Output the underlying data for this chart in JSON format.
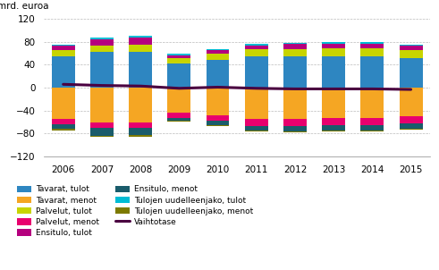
{
  "years": [
    2006,
    2007,
    2008,
    2009,
    2010,
    2011,
    2012,
    2013,
    2014,
    2015
  ],
  "tavarat_tulot": [
    55,
    62,
    62,
    42,
    48,
    55,
    55,
    55,
    55,
    52
  ],
  "palvelut_tulot": [
    10,
    11,
    13,
    10,
    11,
    12,
    13,
    14,
    14,
    13
  ],
  "ensitulo_tulot": [
    8,
    12,
    13,
    5,
    7,
    7,
    8,
    8,
    8,
    8
  ],
  "tulojen_u_tulot": [
    2,
    2,
    2,
    2,
    2,
    2,
    2,
    2,
    2,
    2
  ],
  "tavarat_menot": [
    -55,
    -60,
    -60,
    -43,
    -48,
    -55,
    -55,
    -53,
    -53,
    -50
  ],
  "palvelut_menot": [
    -9,
    -10,
    -10,
    -9,
    -10,
    -11,
    -12,
    -12,
    -12,
    -12
  ],
  "ensitulo_menot": [
    -8,
    -14,
    -13,
    -5,
    -7,
    -8,
    -9,
    -9,
    -9,
    -9
  ],
  "tulojen_u_menot": [
    -2,
    -2,
    -2,
    -2,
    -2,
    -2,
    -2,
    -2,
    -2,
    -2
  ],
  "vaihtotase": [
    6,
    4,
    3,
    -1,
    1,
    -1,
    -2,
    -2,
    -2,
    -3
  ],
  "colors": {
    "tavarat_tulot": "#2e86c1",
    "palvelut_tulot": "#c8d400",
    "ensitulo_tulot": "#b5007e",
    "tulojen_u_tulot": "#00bcd4",
    "tavarat_menot": "#f5a623",
    "palvelut_menot": "#e8006e",
    "ensitulo_menot": "#1a5c6b",
    "tulojen_u_menot": "#7d7a00",
    "vaihtotase": "#4a0040"
  },
  "ylabel": "mrd. euroa",
  "ylim": [
    -120,
    120
  ],
  "yticks": [
    -120,
    -80,
    -40,
    0,
    40,
    80,
    120
  ]
}
